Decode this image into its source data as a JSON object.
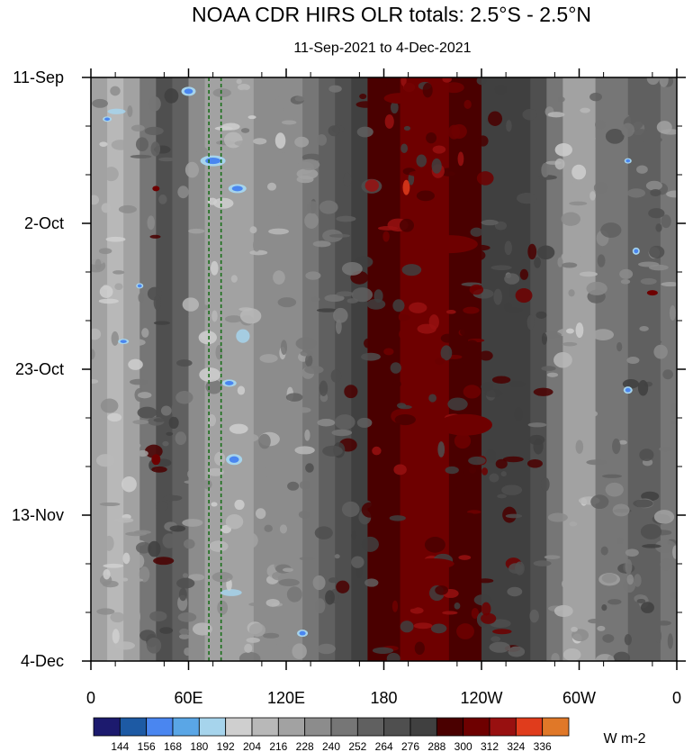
{
  "chart_data": {
    "type": "heatmap",
    "title": "NOAA CDR HIRS OLR totals: 2.5°S - 2.5°N",
    "subtitle": "11-Sep-2021 to 4-Dec-2021",
    "x_ticks": [
      "0",
      "60E",
      "120E",
      "180",
      "120W",
      "60W",
      "0"
    ],
    "x_tick_values": [
      0,
      60,
      120,
      180,
      240,
      300,
      360
    ],
    "y_ticks": [
      "11-Sep",
      "2-Oct",
      "23-Oct",
      "13-Nov",
      "4-Dec"
    ],
    "y_tick_days": [
      0,
      21,
      42,
      63,
      84
    ],
    "xlim": [
      0,
      360
    ],
    "ylim_days": [
      0,
      84
    ],
    "reference_lines_lon": [
      72.5,
      80
    ],
    "colorbar": {
      "levels": [
        144,
        156,
        168,
        180,
        192,
        204,
        216,
        228,
        240,
        252,
        264,
        276,
        288,
        300,
        312,
        324,
        336
      ],
      "colors": [
        "#1c1a6e",
        "#1d5aa4",
        "#4a86f0",
        "#5aa6e6",
        "#a6d4ec",
        "#cfcfcf",
        "#b8b8b8",
        "#a2a2a2",
        "#8c8c8c",
        "#767676",
        "#606060",
        "#4f4f4f",
        "#404040",
        "#4a0000",
        "#6e0000",
        "#981010",
        "#e03c1c",
        "#e07828"
      ],
      "units": "W m-2"
    },
    "zonal_profile": {
      "lon": [
        0,
        10,
        20,
        30,
        40,
        50,
        60,
        70,
        80,
        90,
        100,
        110,
        120,
        130,
        140,
        150,
        160,
        170,
        180,
        190,
        200,
        210,
        220,
        230,
        240,
        250,
        260,
        270,
        280,
        290,
        300,
        310,
        320,
        330,
        340,
        350,
        360
      ],
      "olr": [
        232,
        215,
        212,
        228,
        275,
        272,
        240,
        222,
        220,
        218,
        228,
        232,
        236,
        240,
        250,
        262,
        272,
        285,
        295,
        300,
        302,
        300,
        300,
        296,
        288,
        278,
        276,
        280,
        262,
        220,
        215,
        232,
        248,
        252,
        255,
        252,
        232
      ]
    }
  }
}
